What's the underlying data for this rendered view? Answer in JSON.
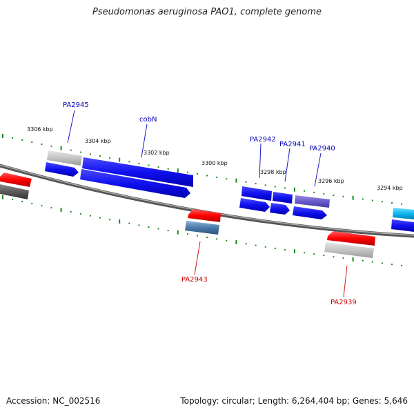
{
  "title": "Pseudomonas aeruginosa PAO1, complete genome",
  "footer": {
    "accession": "Accession: NC_002516",
    "summary": "Topology: circular; Length: 6,264,404 bp; Genes: 5,646"
  },
  "colors": {
    "backbone": "#7a7a7a",
    "forward_label": "#0000bb",
    "reverse_label": "#cc0000",
    "tick": "#1a8a1a"
  },
  "kbp_labels": [
    "3306 kbp",
    "3304 kbp",
    "3302 kbp",
    "3300 kbp",
    "3298 kbp",
    "3296 kbp",
    "3294 kbp"
  ],
  "gene_labels": {
    "PA2945": "PA2945",
    "cobN": "cobN",
    "PA2942": "PA2942",
    "PA2941": "PA2941",
    "PA2940": "PA2940",
    "PA2943": "PA2943",
    "PA2939": "PA2939"
  }
}
